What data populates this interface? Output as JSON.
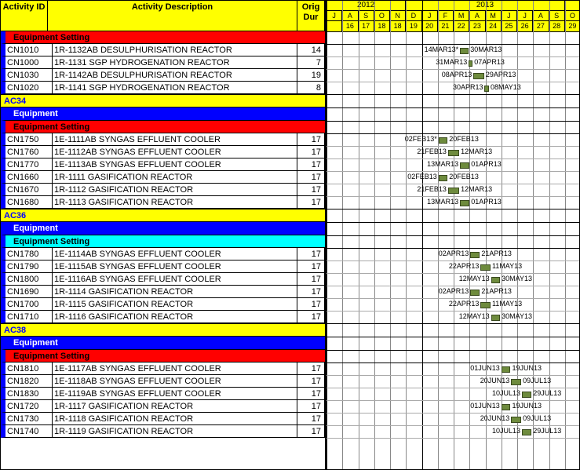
{
  "header": {
    "id": "Activity\nID",
    "desc": "Activity\nDescription",
    "dur": "Orig\nDur"
  },
  "timeline": {
    "years": [
      {
        "label": "2012",
        "span": 5
      },
      {
        "label": "2013",
        "span": 10
      }
    ],
    "months": [
      "J",
      "A",
      "S",
      "O",
      "N",
      "D",
      "J",
      "F",
      "M",
      "A",
      "M",
      "J",
      "J",
      "A",
      "S",
      "O"
    ],
    "days": [
      "",
      "16",
      "17",
      "18",
      "18",
      "19",
      "20",
      "21",
      "22",
      "23",
      "24",
      "25",
      "26",
      "27",
      "28",
      "29"
    ],
    "month_width": 20.25,
    "start_offset": 0,
    "bar_color": "#6e8b3d"
  },
  "lines": [
    {
      "type": "sec",
      "style": "red",
      "text": "Equipment Setting",
      "edge": true
    },
    {
      "type": "row",
      "id": "CN1010",
      "desc": "1R-1132AB DESULPHURISATION REACTOR",
      "dur": "14",
      "bar": {
        "m0": 8.4,
        "m1": 8.95,
        "l": "14MAR13*",
        "r": "30MAR13"
      }
    },
    {
      "type": "row",
      "id": "CN1000",
      "desc": "1R-1131 SGP HYDROGENATION REACTOR",
      "dur": "7",
      "bar": {
        "m0": 8.95,
        "m1": 9.2,
        "l": "31MAR13",
        "r": "07APR13"
      }
    },
    {
      "type": "row",
      "id": "CN1030",
      "desc": "1R-1142AB DESULPHURISATION REACTOR",
      "dur": "19",
      "bar": {
        "m0": 9.25,
        "m1": 9.92,
        "l": "08APR13",
        "r": "29APR13"
      }
    },
    {
      "type": "row",
      "id": "CN1020",
      "desc": "1R-1141 SGP HYDROGENATION REACTOR",
      "dur": "8",
      "bar": {
        "m0": 9.95,
        "m1": 10.22,
        "l": "30APR13",
        "r": "08MAY13"
      },
      "heavy": true
    },
    {
      "type": "sec",
      "style": "yellow",
      "text": "AC34"
    },
    {
      "type": "sec",
      "style": "blue",
      "text": "Equipment",
      "edge": true
    },
    {
      "type": "sec",
      "style": "red",
      "text": "Equipment Setting",
      "edge": true,
      "h16": true
    },
    {
      "type": "row",
      "id": "CN1750",
      "desc": "1E-1111AB SYNGAS EFFLUENT COOLER",
      "dur": "17",
      "bar": {
        "m0": 7.05,
        "m1": 7.62,
        "l": "02FEB13*",
        "r": "20FEB13"
      }
    },
    {
      "type": "row",
      "id": "CN1760",
      "desc": "1E-1112AB SYNGAS EFFLUENT COOLER",
      "dur": "17",
      "bar": {
        "m0": 7.65,
        "m1": 8.35,
        "l": "21FEB13",
        "r": "12MAR13"
      }
    },
    {
      "type": "row",
      "id": "CN1770",
      "desc": "1E-1113AB SYNGAS EFFLUENT COOLER",
      "dur": "17",
      "bar": {
        "m0": 8.4,
        "m1": 9.0,
        "l": "13MAR13",
        "r": "01APR13"
      }
    },
    {
      "type": "row",
      "id": "CN1660",
      "desc": "1R-1111 GASIFICATION REACTOR",
      "dur": "17",
      "bar": {
        "m0": 7.05,
        "m1": 7.62,
        "l": "02FEB13",
        "r": "20FEB13"
      }
    },
    {
      "type": "row",
      "id": "CN1670",
      "desc": "1R-1112 GASIFICATION REACTOR",
      "dur": "17",
      "bar": {
        "m0": 7.65,
        "m1": 8.35,
        "l": "21FEB13",
        "r": "12MAR13"
      }
    },
    {
      "type": "row",
      "id": "CN1680",
      "desc": "1R-1113 GASIFICATION REACTOR",
      "dur": "17",
      "bar": {
        "m0": 8.4,
        "m1": 9.0,
        "l": "13MAR13",
        "r": "01APR13"
      },
      "heavy": true
    },
    {
      "type": "sec",
      "style": "yellow",
      "text": "AC36"
    },
    {
      "type": "sec",
      "style": "blue",
      "text": "Equipment",
      "edge": true
    },
    {
      "type": "sec",
      "style": "cyan",
      "text": "Equipment Setting",
      "edge": true,
      "h16": true
    },
    {
      "type": "row",
      "id": "CN1780",
      "desc": "1E-1114AB SYNGAS EFFLUENT COOLER",
      "dur": "17",
      "bar": {
        "m0": 9.05,
        "m1": 9.65,
        "l": "02APR13",
        "r": "21APR13"
      }
    },
    {
      "type": "row",
      "id": "CN1790",
      "desc": "1E-1115AB SYNGAS EFFLUENT COOLER",
      "dur": "17",
      "bar": {
        "m0": 9.7,
        "m1": 10.32,
        "l": "22APR13",
        "r": "11MAY13"
      }
    },
    {
      "type": "row",
      "id": "CN1800",
      "desc": "1E-1116AB SYNGAS EFFLUENT COOLER",
      "dur": "17",
      "bar": {
        "m0": 10.35,
        "m1": 10.92,
        "l": "12MAY13",
        "r": "30MAY13"
      }
    },
    {
      "type": "row",
      "id": "CN1690",
      "desc": "1R-1114 GASIFICATION REACTOR",
      "dur": "17",
      "bar": {
        "m0": 9.05,
        "m1": 9.65,
        "l": "02APR13",
        "r": "21APR13"
      }
    },
    {
      "type": "row",
      "id": "CN1700",
      "desc": "1R-1115 GASIFICATION REACTOR",
      "dur": "17",
      "bar": {
        "m0": 9.7,
        "m1": 10.32,
        "l": "22APR13",
        "r": "11MAY13"
      }
    },
    {
      "type": "row",
      "id": "CN1710",
      "desc": "1R-1116 GASIFICATION REACTOR",
      "dur": "17",
      "bar": {
        "m0": 10.35,
        "m1": 10.92,
        "l": "12MAY13",
        "r": "30MAY13"
      },
      "heavy": true
    },
    {
      "type": "sec",
      "style": "yellow",
      "text": "AC38"
    },
    {
      "type": "sec",
      "style": "blue",
      "text": "Equipment",
      "edge": true
    },
    {
      "type": "sec",
      "style": "red",
      "text": "Equipment Setting",
      "edge": true,
      "h16": true
    },
    {
      "type": "row",
      "id": "CN1810",
      "desc": "1E-1117AB SYNGAS EFFLUENT COOLER",
      "dur": "17",
      "bar": {
        "m0": 11.0,
        "m1": 11.58,
        "l": "01JUN13",
        "r": "19JUN13"
      }
    },
    {
      "type": "row",
      "id": "CN1820",
      "desc": "1E-1118AB SYNGAS EFFLUENT COOLER",
      "dur": "17",
      "bar": {
        "m0": 11.62,
        "m1": 12.25,
        "l": "20JUN13",
        "r": "09JUL13"
      }
    },
    {
      "type": "row",
      "id": "CN1830",
      "desc": "1E-1119AB SYNGAS EFFLUENT COOLER",
      "dur": "17",
      "bar": {
        "m0": 12.3,
        "m1": 12.9,
        "l": "10JUL13",
        "r": "29JUL13"
      }
    },
    {
      "type": "row",
      "id": "CN1720",
      "desc": "1R-1117 GASIFICATION REACTOR",
      "dur": "17",
      "bar": {
        "m0": 11.0,
        "m1": 11.58,
        "l": "01JUN13",
        "r": "19JUN13"
      }
    },
    {
      "type": "row",
      "id": "CN1730",
      "desc": "1R-1118 GASIFICATION REACTOR",
      "dur": "17",
      "bar": {
        "m0": 11.62,
        "m1": 12.25,
        "l": "20JUN13",
        "r": "09JUL13"
      }
    },
    {
      "type": "row",
      "id": "CN1740",
      "desc": "1R-1119 GASIFICATION REACTOR",
      "dur": "17",
      "bar": {
        "m0": 12.3,
        "m1": 12.9,
        "l": "10JUL13",
        "r": "29JUL13"
      }
    }
  ]
}
